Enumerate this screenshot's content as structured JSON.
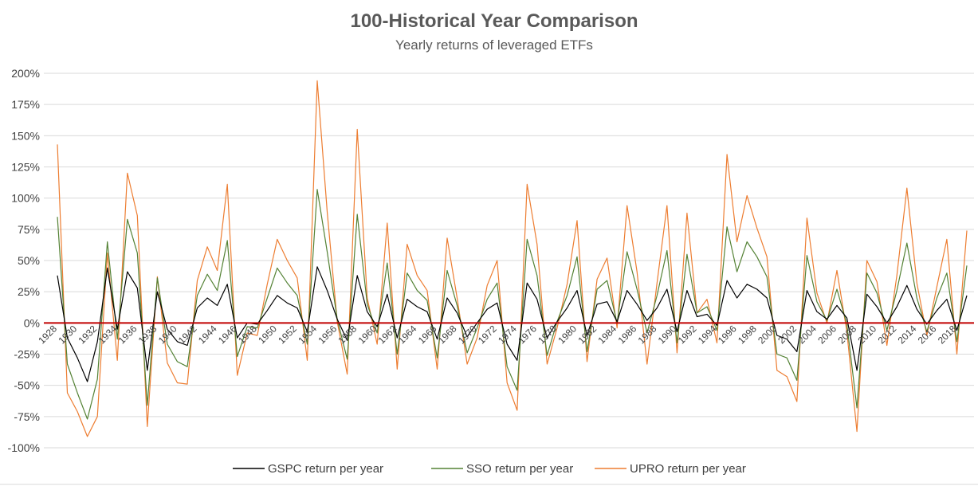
{
  "chart_data": {
    "type": "line",
    "title": "100-Historical Year Comparison",
    "subtitle": "Yearly returns of leveraged ETFs",
    "xlabel": "",
    "ylabel": "",
    "ylim": [
      -100,
      200
    ],
    "ytick_labels": [
      "200%",
      "175%",
      "150%",
      "125%",
      "100%",
      "75%",
      "50%",
      "25%",
      "0%",
      "-25%",
      "-50%",
      "-75%",
      "-100%"
    ],
    "x": [
      1928,
      1929,
      1930,
      1931,
      1932,
      1933,
      1934,
      1935,
      1936,
      1937,
      1938,
      1939,
      1940,
      1941,
      1942,
      1943,
      1944,
      1945,
      1946,
      1947,
      1948,
      1949,
      1950,
      1951,
      1952,
      1953,
      1954,
      1955,
      1956,
      1957,
      1958,
      1959,
      1960,
      1961,
      1962,
      1963,
      1964,
      1965,
      1966,
      1967,
      1968,
      1969,
      1970,
      1971,
      1972,
      1973,
      1974,
      1975,
      1976,
      1977,
      1978,
      1979,
      1980,
      1981,
      1982,
      1983,
      1984,
      1985,
      1986,
      1987,
      1988,
      1989,
      1990,
      1991,
      1992,
      1993,
      1994,
      1995,
      1996,
      1997,
      1998,
      1999,
      2000,
      2001,
      2002,
      2003,
      2004,
      2005,
      2006,
      2007,
      2008,
      2009,
      2010,
      2011,
      2012,
      2013,
      2014,
      2015,
      2016,
      2017,
      2018,
      2019
    ],
    "x_tick_labels": [
      "1928",
      "1930",
      "1932",
      "1934",
      "1936",
      "1938",
      "1940",
      "1942",
      "1944",
      "1946",
      "1948",
      "1950",
      "1952",
      "1954",
      "1956",
      "1958",
      "1960",
      "1962",
      "1964",
      "1966",
      "1968",
      "1970",
      "1972",
      "1974",
      "1976",
      "1978",
      "1980",
      "1982",
      "1984",
      "1986",
      "1988",
      "1990",
      "1992",
      "1994",
      "1996",
      "1998",
      "2000",
      "2002",
      "2004",
      "2006",
      "2008",
      "2010",
      "2012",
      "2014",
      "2016",
      "2018"
    ],
    "zero_line_color": "#c00000",
    "legend_position": "bottom",
    "series": [
      {
        "name": "GSPC return per year",
        "color": "#000000",
        "values": [
          38,
          -12,
          -28,
          -47,
          -15,
          44,
          -5,
          41,
          28,
          -38,
          25,
          -5,
          -15,
          -18,
          12,
          20,
          14,
          31,
          -12,
          0,
          -1,
          10,
          22,
          16,
          12,
          -7,
          45,
          26,
          3,
          -14,
          38,
          9,
          -3,
          23,
          -12,
          19,
          13,
          9,
          -13,
          20,
          8,
          -11,
          0,
          11,
          16,
          -17,
          -30,
          32,
          19,
          -12,
          1,
          12,
          26,
          -10,
          15,
          17,
          1,
          26,
          15,
          2,
          12,
          27,
          -7,
          26,
          5,
          7,
          -2,
          34,
          20,
          31,
          27,
          20,
          -10,
          -13,
          -23,
          26,
          9,
          3,
          14,
          4,
          -38,
          23,
          13,
          0,
          13,
          30,
          11,
          -1,
          10,
          19,
          -6,
          22
        ]
      },
      {
        "name": "SSO return per year",
        "color": "#548235",
        "values": [
          85,
          -33,
          -56,
          -77,
          -45,
          65,
          -13,
          83,
          56,
          -66,
          36,
          -17,
          -31,
          -35,
          22,
          39,
          26,
          66,
          -27,
          -3,
          -4,
          20,
          44,
          32,
          22,
          -17,
          107,
          57,
          3,
          -29,
          87,
          15,
          -8,
          48,
          -25,
          40,
          26,
          18,
          -28,
          42,
          14,
          -24,
          -4,
          19,
          32,
          -35,
          -54,
          67,
          38,
          -26,
          1,
          22,
          53,
          -23,
          27,
          34,
          0,
          57,
          27,
          -8,
          22,
          58,
          -16,
          55,
          8,
          13,
          -6,
          77,
          41,
          65,
          53,
          37,
          -25,
          -28,
          -46,
          54,
          17,
          2,
          27,
          -1,
          -68,
          40,
          24,
          -6,
          26,
          64,
          20,
          -7,
          20,
          40,
          -15,
          46
        ]
      },
      {
        "name": "UPRO return per year",
        "color": "#ed7d31",
        "values": [
          143,
          -56,
          -71,
          -91,
          -75,
          56,
          -30,
          120,
          86,
          -83,
          37,
          -32,
          -48,
          -49,
          34,
          61,
          42,
          111,
          -42,
          -8,
          -10,
          31,
          67,
          50,
          36,
          -30,
          194,
          89,
          1,
          -41,
          155,
          20,
          -17,
          80,
          -37,
          63,
          38,
          26,
          -37,
          68,
          20,
          -33,
          -12,
          30,
          50,
          -48,
          -70,
          111,
          63,
          -33,
          -4,
          31,
          82,
          -31,
          35,
          52,
          -4,
          94,
          41,
          -33,
          32,
          94,
          -24,
          88,
          8,
          19,
          -16,
          135,
          65,
          102,
          76,
          53,
          -38,
          -43,
          -63,
          84,
          24,
          0,
          42,
          -7,
          -87,
          50,
          33,
          -18,
          38,
          108,
          32,
          -10,
          29,
          67,
          -25,
          74
        ]
      }
    ]
  }
}
